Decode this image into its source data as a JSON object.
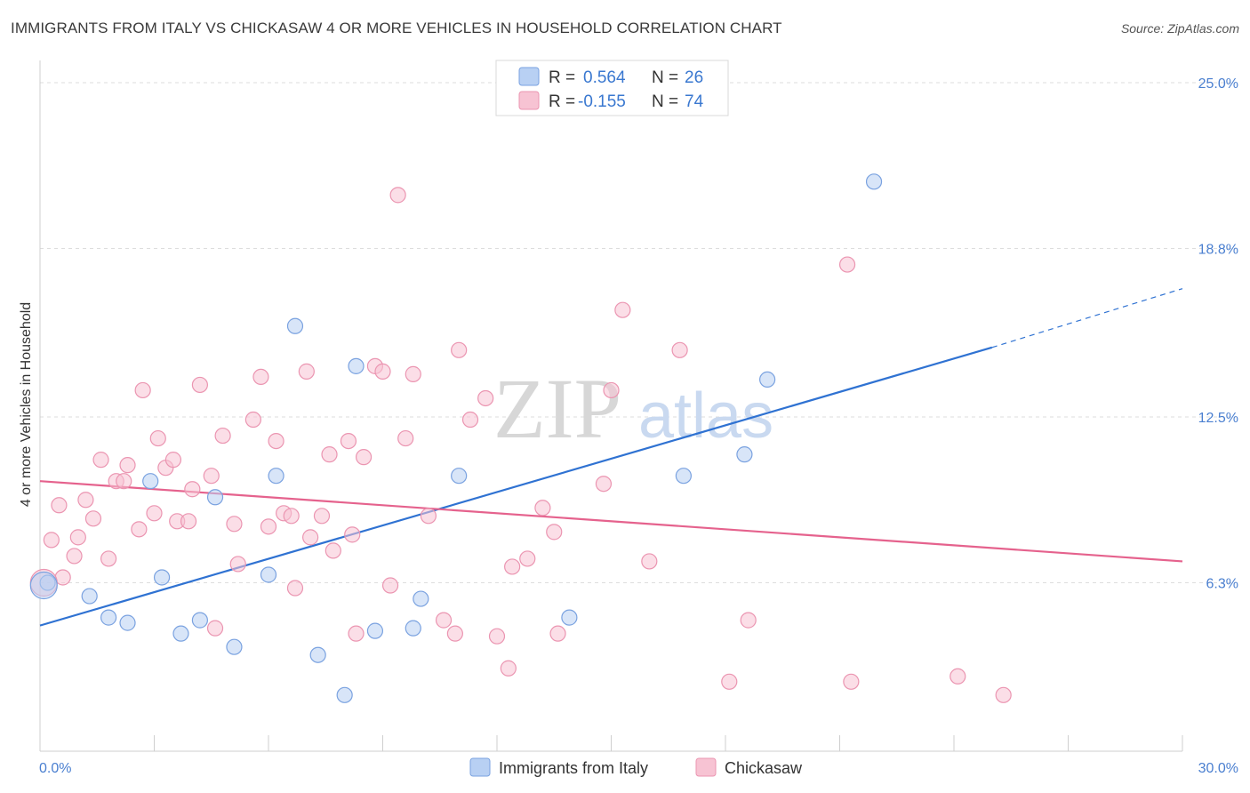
{
  "title": "IMMIGRANTS FROM ITALY VS CHICKASAW 4 OR MORE VEHICLES IN HOUSEHOLD CORRELATION CHART",
  "source": "Source: ZipAtlas.com",
  "watermark": {
    "zip": "ZIP",
    "atlas": "atlas"
  },
  "colors": {
    "italy_fill": "#b8d0f3",
    "italy_stroke": "#7aa2e0",
    "italy_line": "#2f72d2",
    "chickasaw_fill": "#f7c3d3",
    "chickasaw_stroke": "#eb95b1",
    "chickasaw_line": "#e5628d",
    "tick_text": "#4a7fd0",
    "grid": "#dddddd"
  },
  "legend": {
    "rows": [
      {
        "r_label": "R =",
        "r_value": "0.564",
        "n_label": "N =",
        "n_value": "26",
        "series": "italy"
      },
      {
        "r_label": "R =",
        "r_value": "-0.155",
        "n_label": "N =",
        "n_value": "74",
        "series": "chickasaw"
      }
    ]
  },
  "chart_data": {
    "type": "scatter",
    "xlabel": "",
    "ylabel": "4 or more Vehicles in Household",
    "xlim": [
      0,
      30
    ],
    "ylim": [
      0,
      25.5
    ],
    "x_tick_labels": [
      "0.0%",
      "30.0%"
    ],
    "y_ticks": [
      6.3,
      12.5,
      18.8,
      25.0
    ],
    "y_tick_labels": [
      "6.3%",
      "12.5%",
      "18.8%",
      "25.0%"
    ],
    "grid": "horizontal dashed",
    "legend_position": "bottom",
    "series": [
      {
        "name": "Immigrants from Italy",
        "key": "italy",
        "points": [
          [
            0.2,
            6.3
          ],
          [
            1.3,
            5.8
          ],
          [
            1.8,
            5.0
          ],
          [
            2.3,
            4.8
          ],
          [
            2.9,
            10.1
          ],
          [
            3.2,
            6.5
          ],
          [
            3.7,
            4.4
          ],
          [
            4.2,
            4.9
          ],
          [
            4.6,
            9.5
          ],
          [
            5.1,
            3.9
          ],
          [
            6.0,
            6.6
          ],
          [
            6.2,
            10.3
          ],
          [
            6.7,
            15.9
          ],
          [
            7.3,
            3.6
          ],
          [
            8.0,
            2.1
          ],
          [
            8.3,
            14.4
          ],
          [
            8.8,
            4.5
          ],
          [
            9.8,
            4.6
          ],
          [
            10.0,
            5.7
          ],
          [
            11.0,
            10.3
          ],
          [
            13.9,
            5.0
          ],
          [
            16.9,
            10.3
          ],
          [
            18.5,
            11.1
          ],
          [
            19.1,
            13.9
          ],
          [
            21.9,
            21.3
          ],
          [
            0.1,
            6.2
          ]
        ],
        "trend": {
          "x": [
            0,
            25.0
          ],
          "y": [
            4.7,
            15.1
          ],
          "dash_to": [
            30,
            17.3
          ]
        }
      },
      {
        "name": "Chickasaw",
        "key": "chickasaw",
        "points": [
          [
            0.3,
            7.9
          ],
          [
            0.5,
            9.2
          ],
          [
            0.6,
            6.5
          ],
          [
            0.9,
            7.3
          ],
          [
            1.0,
            8.0
          ],
          [
            1.2,
            9.4
          ],
          [
            1.4,
            8.7
          ],
          [
            1.6,
            10.9
          ],
          [
            1.8,
            7.2
          ],
          [
            2.0,
            10.1
          ],
          [
            2.2,
            10.1
          ],
          [
            2.3,
            10.7
          ],
          [
            2.6,
            8.3
          ],
          [
            2.7,
            13.5
          ],
          [
            3.0,
            8.9
          ],
          [
            3.1,
            11.7
          ],
          [
            3.3,
            10.6
          ],
          [
            3.5,
            10.9
          ],
          [
            3.6,
            8.6
          ],
          [
            3.9,
            8.6
          ],
          [
            4.0,
            9.8
          ],
          [
            4.2,
            13.7
          ],
          [
            4.5,
            10.3
          ],
          [
            4.6,
            4.6
          ],
          [
            4.8,
            11.8
          ],
          [
            5.1,
            8.5
          ],
          [
            5.2,
            7.0
          ],
          [
            5.6,
            12.4
          ],
          [
            5.8,
            14.0
          ],
          [
            6.0,
            8.4
          ],
          [
            6.2,
            11.6
          ],
          [
            6.4,
            8.9
          ],
          [
            6.6,
            8.8
          ],
          [
            6.7,
            6.1
          ],
          [
            7.0,
            14.2
          ],
          [
            7.1,
            8.0
          ],
          [
            7.4,
            8.8
          ],
          [
            7.6,
            11.1
          ],
          [
            7.7,
            7.5
          ],
          [
            8.1,
            11.6
          ],
          [
            8.2,
            8.1
          ],
          [
            8.3,
            4.4
          ],
          [
            8.5,
            11.0
          ],
          [
            8.8,
            14.4
          ],
          [
            9.0,
            14.2
          ],
          [
            9.2,
            6.2
          ],
          [
            9.4,
            20.8
          ],
          [
            9.6,
            11.7
          ],
          [
            9.8,
            14.1
          ],
          [
            10.2,
            8.8
          ],
          [
            10.6,
            4.9
          ],
          [
            10.9,
            4.4
          ],
          [
            11.0,
            15.0
          ],
          [
            11.3,
            12.4
          ],
          [
            11.7,
            13.2
          ],
          [
            12.0,
            4.3
          ],
          [
            12.3,
            3.1
          ],
          [
            12.4,
            6.9
          ],
          [
            12.8,
            7.2
          ],
          [
            13.2,
            9.1
          ],
          [
            13.5,
            8.2
          ],
          [
            13.6,
            4.4
          ],
          [
            14.8,
            10.0
          ],
          [
            15.0,
            13.5
          ],
          [
            15.3,
            16.5
          ],
          [
            16.0,
            7.1
          ],
          [
            16.8,
            15.0
          ],
          [
            18.1,
            2.6
          ],
          [
            18.6,
            4.9
          ],
          [
            21.2,
            18.2
          ],
          [
            21.3,
            2.6
          ],
          [
            24.1,
            2.8
          ],
          [
            25.3,
            2.1
          ],
          [
            0.1,
            6.3
          ]
        ],
        "trend": {
          "x": [
            0,
            30
          ],
          "y": [
            10.1,
            7.1
          ]
        }
      }
    ]
  },
  "bottom_legend": [
    {
      "label": "Immigrants from Italy",
      "series": "italy"
    },
    {
      "label": "Chickasaw",
      "series": "chickasaw"
    }
  ]
}
